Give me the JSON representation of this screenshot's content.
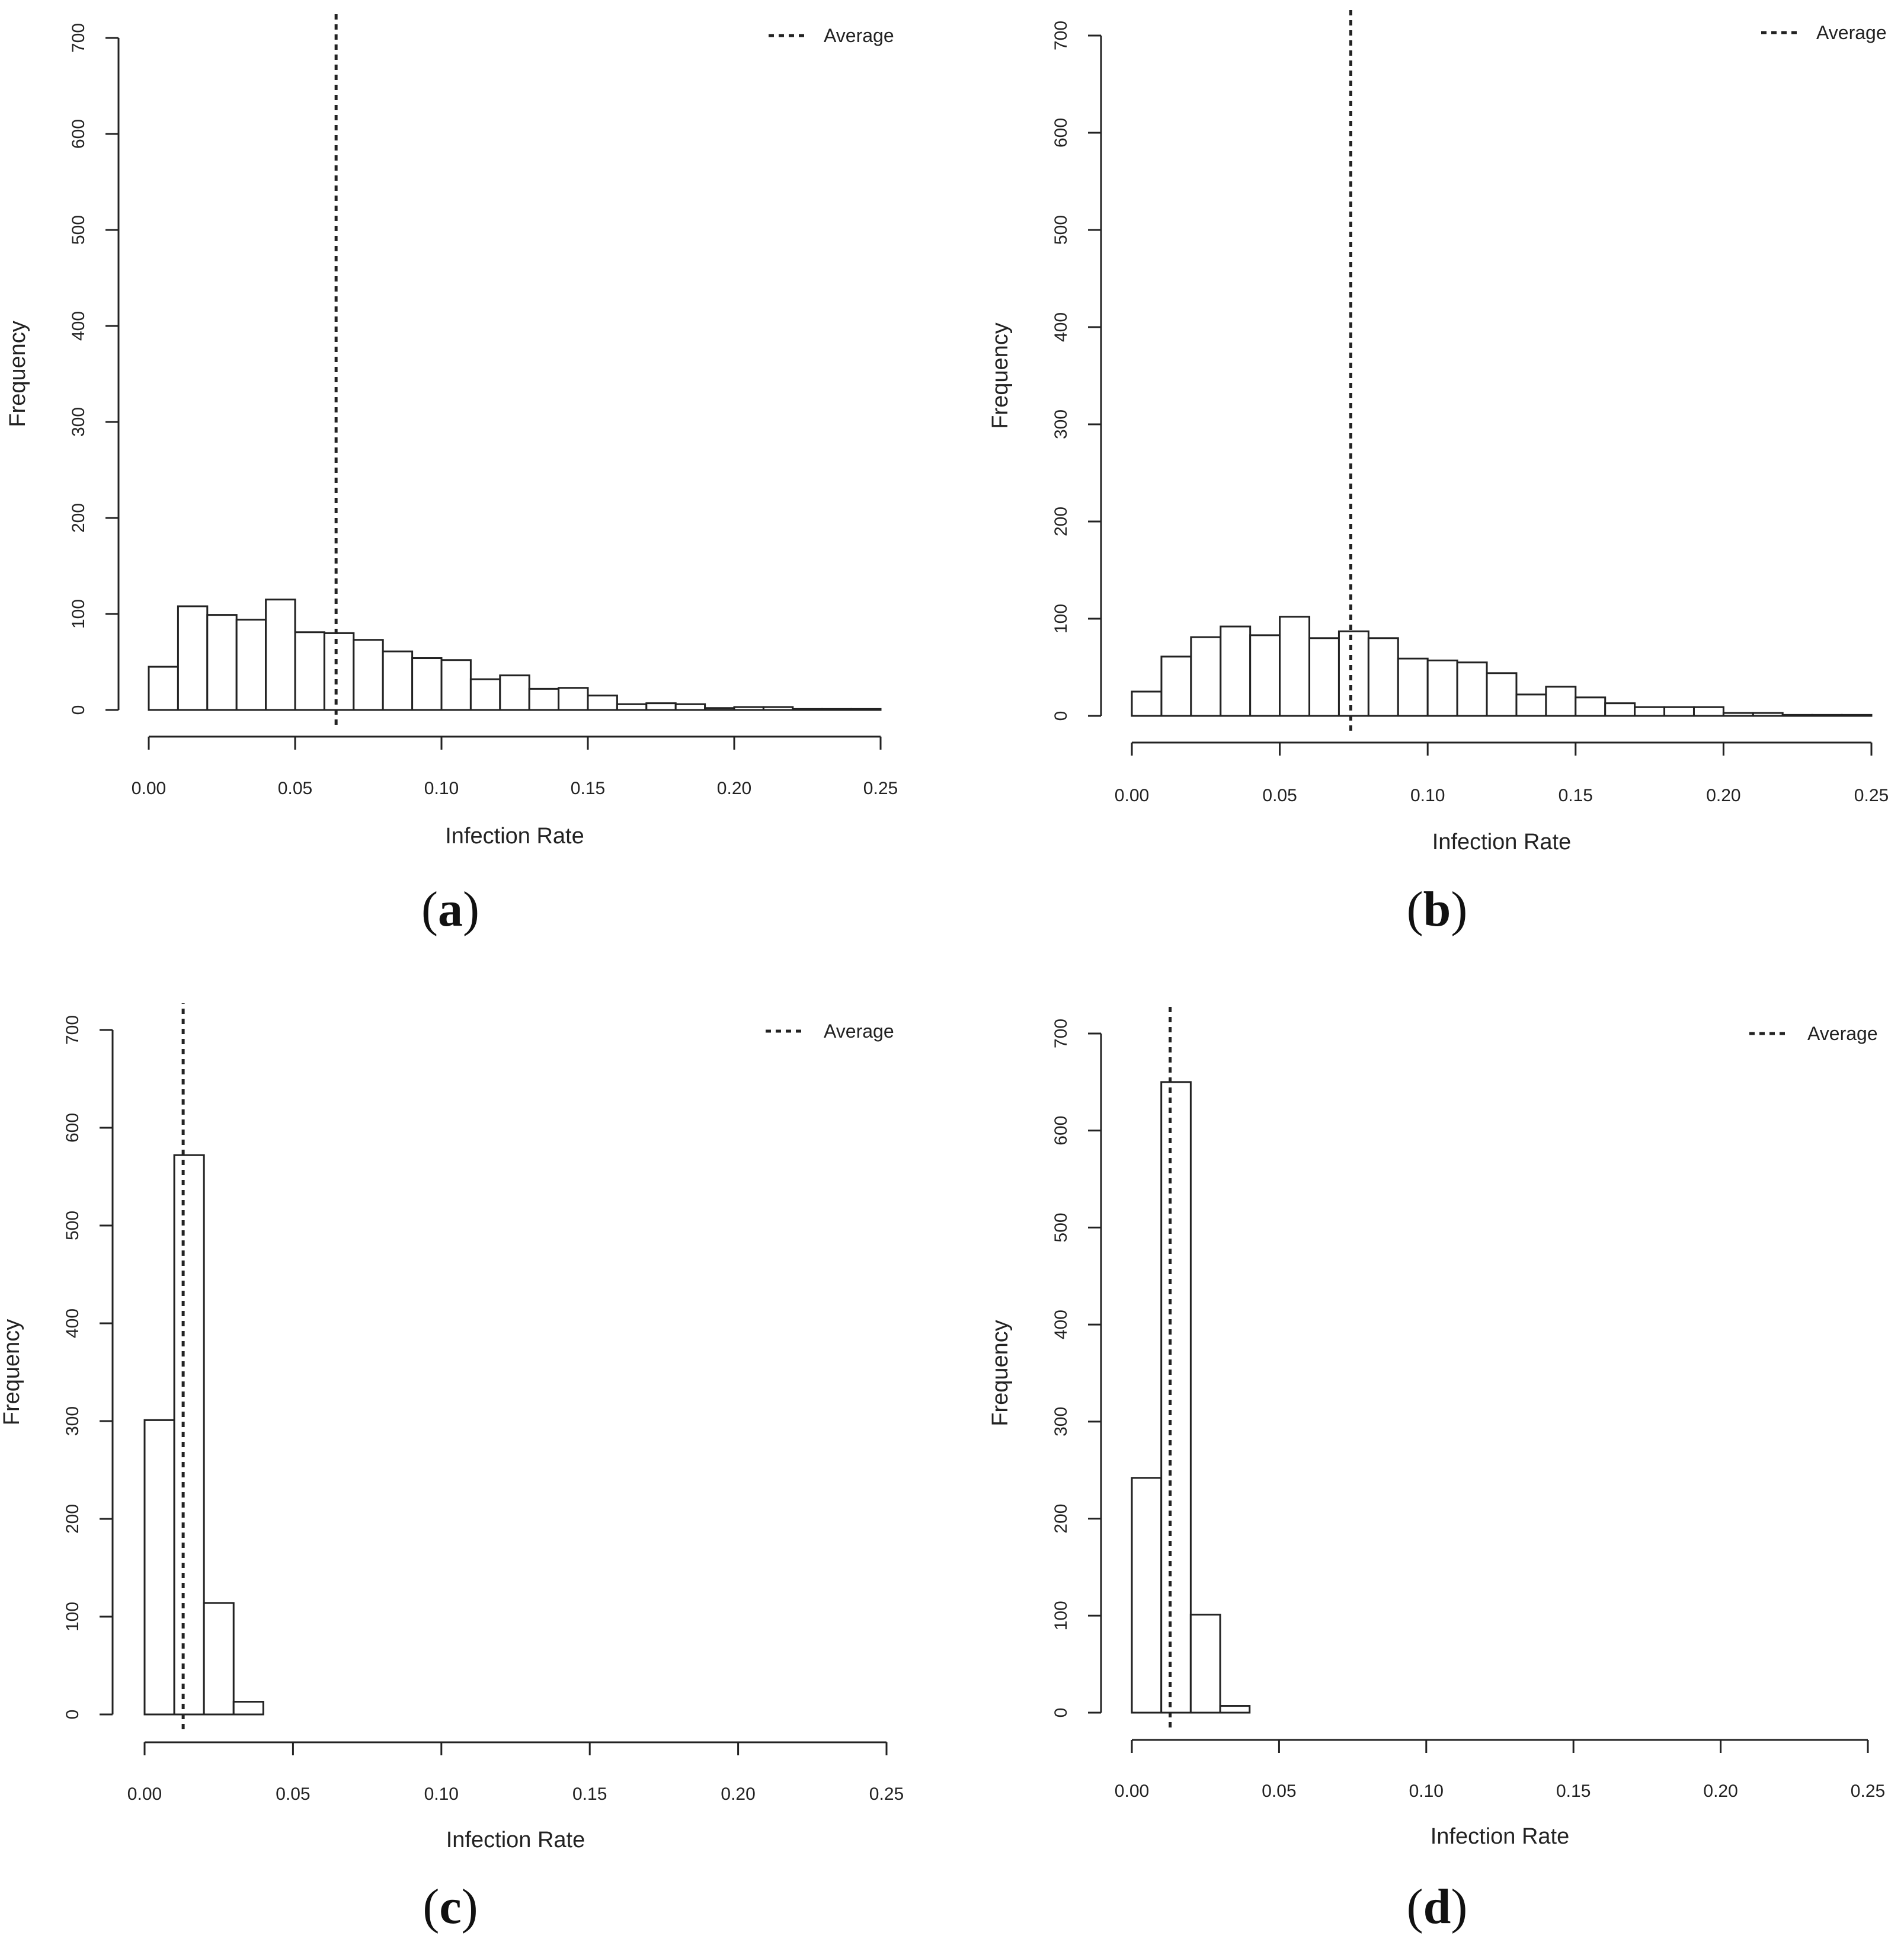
{
  "chart_data": [
    {
      "type": "bar",
      "panel_label": "a",
      "xlabel": "Infection Rate",
      "ylabel": "Frequency",
      "xlim": [
        0,
        0.25
      ],
      "ylim": [
        0,
        700
      ],
      "x_ticks": [
        "0.00",
        "0.05",
        "0.10",
        "0.15",
        "0.20",
        "0.25"
      ],
      "y_ticks": [
        "0",
        "100",
        "200",
        "300",
        "400",
        "500",
        "600",
        "700"
      ],
      "bin_width": 0.01,
      "bin_start": 0,
      "values": [
        45,
        108,
        99,
        94,
        115,
        81,
        80,
        73,
        61,
        54,
        52,
        32,
        36,
        22,
        23,
        15,
        6,
        7,
        6,
        2,
        3,
        3,
        1,
        1,
        1
      ],
      "average": 0.064,
      "legend": "Average",
      "legend_position": "top-right"
    },
    {
      "type": "bar",
      "panel_label": "b",
      "xlabel": "Infection Rate",
      "ylabel": "Frequency",
      "xlim": [
        0,
        0.25
      ],
      "ylim": [
        0,
        700
      ],
      "x_ticks": [
        "0.00",
        "0.05",
        "0.10",
        "0.15",
        "0.20",
        "0.25"
      ],
      "y_ticks": [
        "0",
        "100",
        "200",
        "300",
        "400",
        "500",
        "600",
        "700"
      ],
      "bin_width": 0.01,
      "bin_start": 0,
      "values": [
        25,
        61,
        81,
        92,
        83,
        102,
        80,
        87,
        80,
        59,
        57,
        55,
        44,
        22,
        30,
        19,
        13,
        9,
        9,
        9,
        3,
        3,
        1,
        1,
        1
      ],
      "average": 0.074,
      "legend": "Average",
      "legend_position": "top-right"
    },
    {
      "type": "bar",
      "panel_label": "c",
      "xlabel": "Infection Rate",
      "ylabel": "Frequency",
      "xlim": [
        0,
        0.25
      ],
      "ylim": [
        0,
        700
      ],
      "x_ticks": [
        "0.00",
        "0.05",
        "0.10",
        "0.15",
        "0.20",
        "0.25"
      ],
      "y_ticks": [
        "0",
        "100",
        "200",
        "300",
        "400",
        "500",
        "600",
        "700"
      ],
      "bin_width": 0.01,
      "bin_start": 0,
      "values": [
        301,
        572,
        114,
        13,
        0,
        0,
        0,
        0,
        0,
        0,
        0,
        0,
        0,
        0,
        0,
        0,
        0,
        0,
        0,
        0,
        0,
        0,
        0,
        0,
        0
      ],
      "average": 0.013,
      "legend": "Average",
      "legend_position": "top-right"
    },
    {
      "type": "bar",
      "panel_label": "d",
      "xlabel": "Infection Rate",
      "ylabel": "Frequency",
      "xlim": [
        0,
        0.25
      ],
      "ylim": [
        0,
        700
      ],
      "x_ticks": [
        "0.00",
        "0.05",
        "0.10",
        "0.15",
        "0.20",
        "0.25"
      ],
      "y_ticks": [
        "0",
        "100",
        "200",
        "300",
        "400",
        "500",
        "600",
        "700"
      ],
      "bin_width": 0.01,
      "bin_start": 0,
      "values": [
        242,
        650,
        101,
        7,
        0,
        0,
        0,
        0,
        0,
        0,
        0,
        0,
        0,
        0,
        0,
        0,
        0,
        0,
        0,
        0,
        0,
        0,
        0,
        0,
        0
      ],
      "average": 0.013,
      "legend": "Average",
      "legend_position": "top-right"
    }
  ]
}
